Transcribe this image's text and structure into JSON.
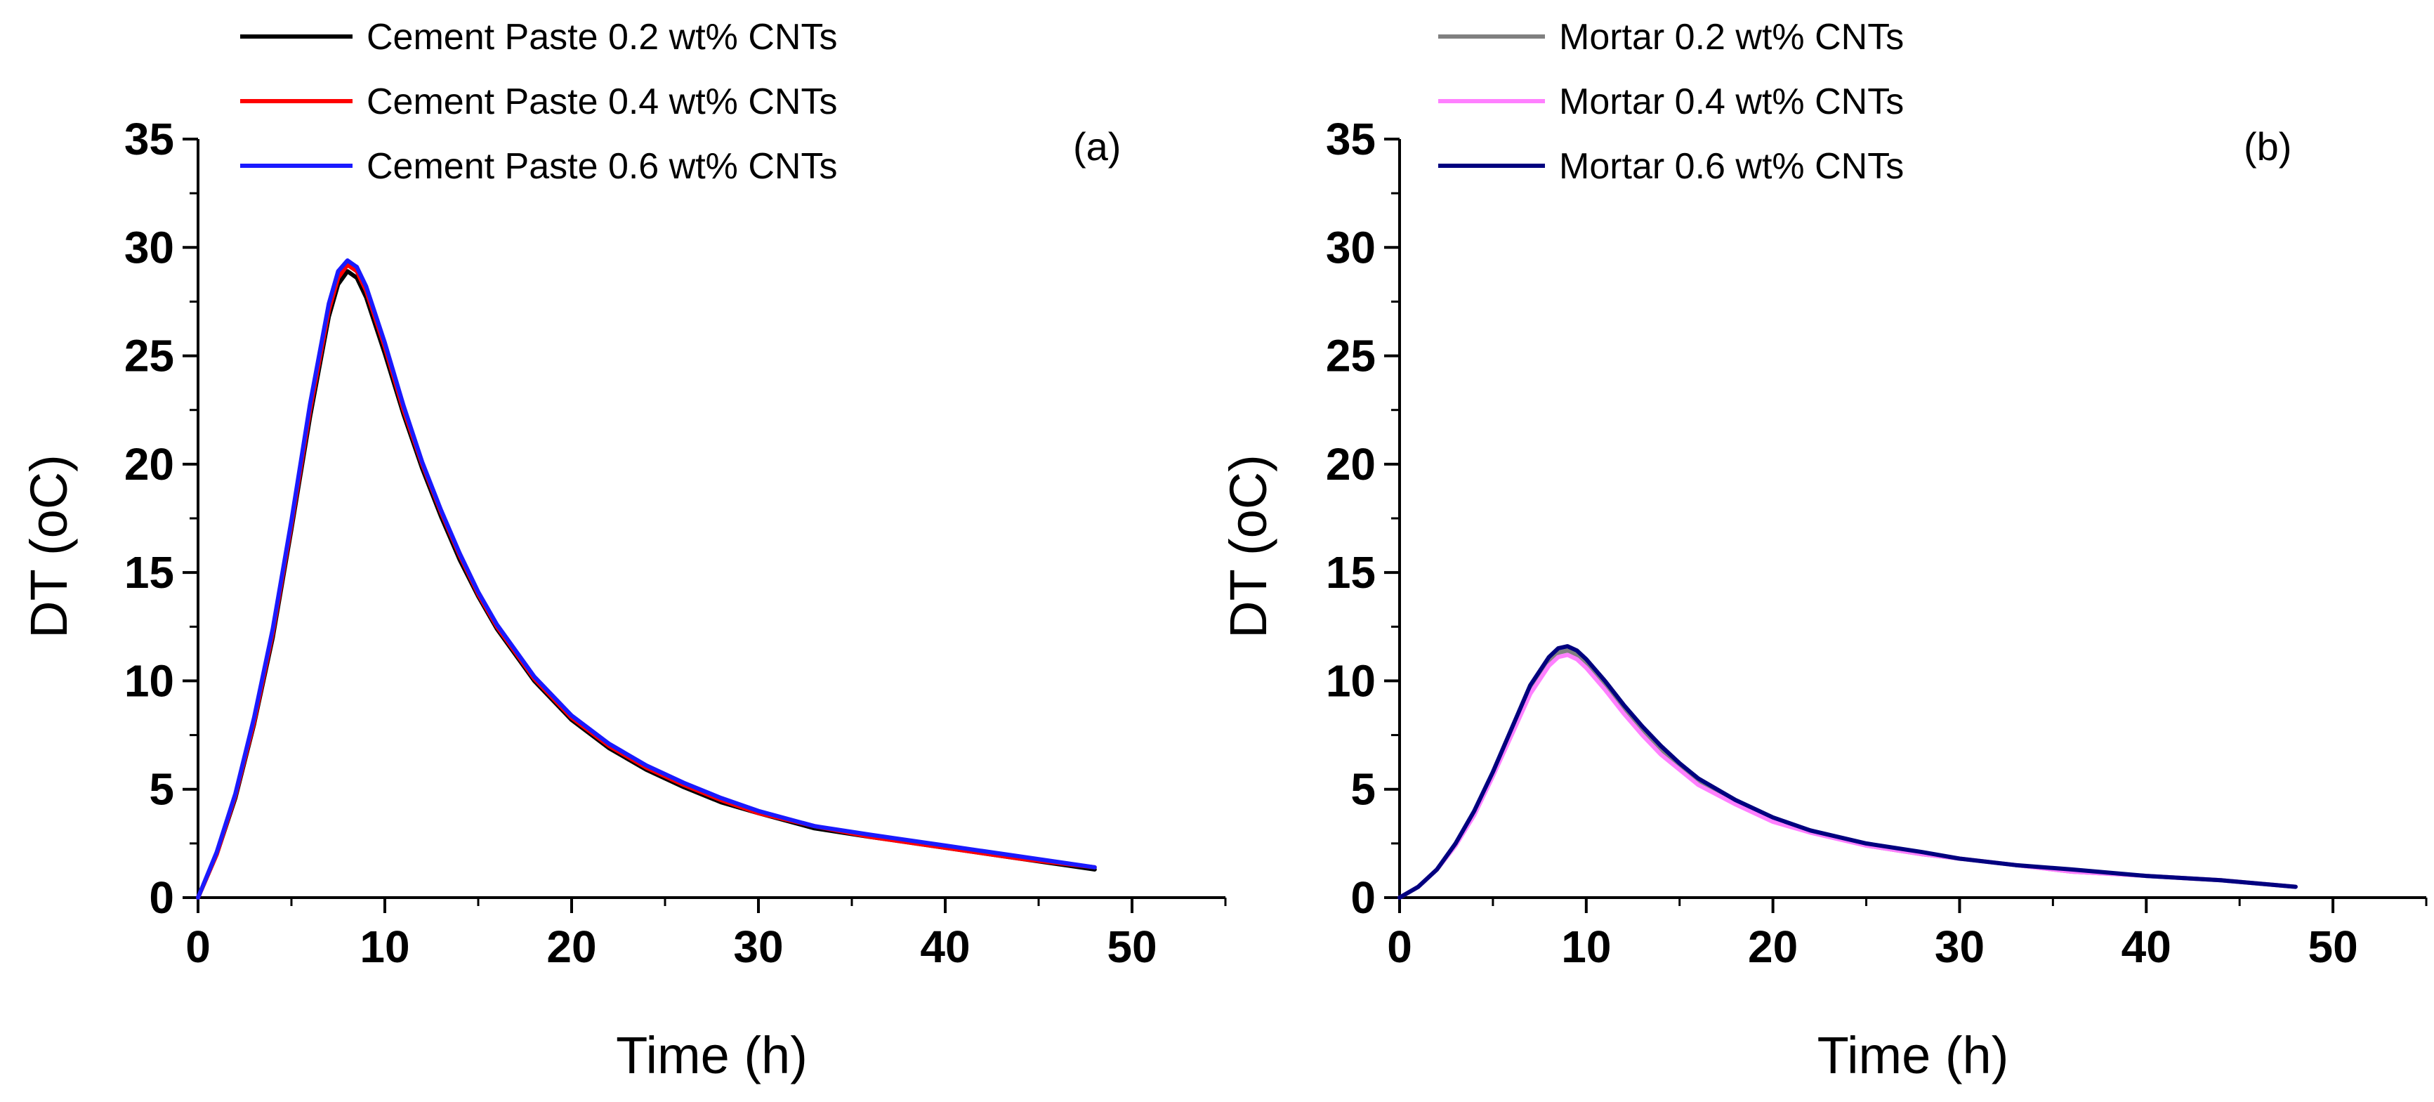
{
  "chart_data": [
    {
      "type": "line",
      "panel_label": "(a)",
      "xlabel": "Time (h)",
      "ylabel": "DT (oC)",
      "xlim": [
        0,
        55
      ],
      "ylim": [
        0,
        35
      ],
      "xticks": [
        0,
        10,
        20,
        30,
        40,
        50
      ],
      "yticks": [
        0,
        5,
        10,
        15,
        20,
        25,
        30,
        35
      ],
      "legend_position": "top-left",
      "series": [
        {
          "name": "Cement Paste 0.2 wt% CNTs",
          "color": "#000000",
          "x": [
            0,
            1,
            2,
            3,
            4,
            5,
            6,
            7,
            7.5,
            8,
            8.5,
            9,
            10,
            11,
            12,
            13,
            14,
            15,
            16,
            18,
            20,
            22,
            24,
            26,
            28,
            30,
            33,
            36,
            40,
            44,
            48
          ],
          "y": [
            0,
            2.0,
            4.6,
            8.0,
            12.0,
            17.0,
            22.2,
            26.8,
            28.3,
            28.9,
            28.6,
            27.7,
            25.1,
            22.3,
            19.8,
            17.6,
            15.6,
            13.9,
            12.4,
            10.0,
            8.2,
            6.9,
            5.9,
            5.1,
            4.4,
            3.9,
            3.2,
            2.8,
            2.3,
            1.8,
            1.3
          ]
        },
        {
          "name": "Cement Paste 0.4 wt% CNTs",
          "color": "#ff0000",
          "x": [
            0,
            1,
            2,
            3,
            4,
            5,
            6,
            7,
            7.5,
            8,
            8.5,
            9,
            10,
            11,
            12,
            13,
            14,
            15,
            16,
            18,
            20,
            22,
            24,
            26,
            28,
            30,
            33,
            36,
            40,
            44,
            48
          ],
          "y": [
            0,
            2.0,
            4.7,
            8.1,
            12.2,
            17.2,
            22.5,
            27.1,
            28.6,
            29.2,
            28.9,
            28.0,
            25.4,
            22.5,
            20.0,
            17.8,
            15.8,
            14.0,
            12.5,
            10.1,
            8.3,
            7.0,
            6.0,
            5.2,
            4.5,
            3.9,
            3.3,
            2.8,
            2.3,
            1.8,
            1.4
          ]
        },
        {
          "name": "Cement Paste 0.6 wt% CNTs",
          "color": "#1a1aff",
          "x": [
            0,
            1,
            2,
            3,
            4,
            5,
            6,
            7,
            7.5,
            8,
            8.5,
            9,
            10,
            11,
            12,
            13,
            14,
            15,
            16,
            18,
            20,
            22,
            24,
            26,
            28,
            30,
            33,
            36,
            40,
            44,
            48
          ],
          "y": [
            0,
            2.1,
            4.8,
            8.3,
            12.4,
            17.4,
            22.8,
            27.4,
            28.9,
            29.4,
            29.1,
            28.2,
            25.6,
            22.7,
            20.1,
            17.9,
            15.9,
            14.1,
            12.6,
            10.2,
            8.4,
            7.1,
            6.1,
            5.3,
            4.6,
            4.0,
            3.3,
            2.9,
            2.4,
            1.9,
            1.4
          ]
        }
      ]
    },
    {
      "type": "line",
      "panel_label": "(b)",
      "xlabel": "Time (h)",
      "ylabel": "DT (oC)",
      "xlim": [
        0,
        55
      ],
      "ylim": [
        0,
        35
      ],
      "xticks": [
        0,
        10,
        20,
        30,
        40,
        50
      ],
      "yticks": [
        0,
        5,
        10,
        15,
        20,
        25,
        30,
        35
      ],
      "legend_position": "top-left",
      "series": [
        {
          "name": "Mortar 0.2 wt% CNTs",
          "color": "#808080",
          "x": [
            0,
            1,
            2,
            3,
            4,
            5,
            6,
            7,
            8,
            8.5,
            9,
            9.5,
            10,
            11,
            12,
            13,
            14,
            15,
            16,
            18,
            20,
            22,
            25,
            28,
            30,
            33,
            36,
            40,
            44,
            48
          ],
          "y": [
            0,
            0.5,
            1.3,
            2.4,
            3.9,
            5.7,
            7.7,
            9.6,
            10.9,
            11.3,
            11.4,
            11.2,
            10.8,
            9.8,
            8.7,
            7.7,
            6.8,
            6.1,
            5.4,
            4.4,
            3.6,
            3.1,
            2.4,
            2.0,
            1.8,
            1.5,
            1.2,
            1.0,
            0.8,
            0.5
          ]
        },
        {
          "name": "Mortar 0.4 wt% CNTs",
          "color": "#ff80ff",
          "x": [
            0,
            1,
            2,
            3,
            4,
            5,
            6,
            7,
            8,
            8.5,
            9,
            9.5,
            10,
            11,
            12,
            13,
            14,
            15,
            16,
            18,
            20,
            22,
            25,
            28,
            30,
            33,
            36,
            40,
            44,
            48
          ],
          "y": [
            0,
            0.5,
            1.3,
            2.4,
            3.8,
            5.6,
            7.5,
            9.4,
            10.7,
            11.1,
            11.2,
            11.0,
            10.6,
            9.6,
            8.5,
            7.5,
            6.6,
            5.9,
            5.2,
            4.3,
            3.5,
            3.0,
            2.4,
            2.0,
            1.8,
            1.5,
            1.2,
            1.0,
            0.8,
            0.5
          ]
        },
        {
          "name": "Mortar 0.6 wt% CNTs",
          "color": "#00007f",
          "x": [
            0,
            1,
            2,
            3,
            4,
            5,
            6,
            7,
            8,
            8.5,
            9,
            9.5,
            10,
            11,
            12,
            13,
            14,
            15,
            16,
            18,
            20,
            22,
            25,
            28,
            30,
            33,
            36,
            40,
            44,
            48
          ],
          "y": [
            0,
            0.5,
            1.3,
            2.5,
            4.0,
            5.8,
            7.8,
            9.8,
            11.1,
            11.5,
            11.6,
            11.4,
            11.0,
            10.0,
            8.9,
            7.9,
            7.0,
            6.2,
            5.5,
            4.5,
            3.7,
            3.1,
            2.5,
            2.1,
            1.8,
            1.5,
            1.3,
            1.0,
            0.8,
            0.5
          ]
        }
      ]
    }
  ]
}
